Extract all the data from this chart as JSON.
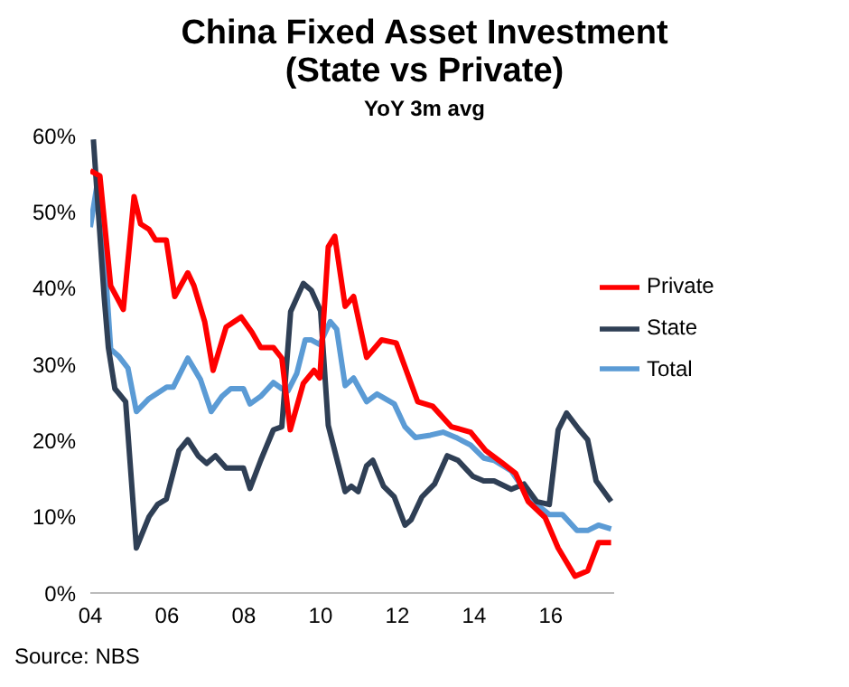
{
  "chart_data": {
    "type": "line",
    "title": "China Fixed Asset Investment\n(State vs Private)",
    "subtitle": "YoY 3m avg",
    "annotations": [
      "Source: NBS"
    ],
    "xlim": [
      2004,
      2017.65
    ],
    "xticks": [
      {
        "value": 2004,
        "label": "04"
      },
      {
        "value": 2006,
        "label": "06"
      },
      {
        "value": 2008,
        "label": "08"
      },
      {
        "value": 2010,
        "label": "10"
      },
      {
        "value": 2012,
        "label": "12"
      },
      {
        "value": 2014,
        "label": "14"
      },
      {
        "value": 2016,
        "label": "16"
      }
    ],
    "ylim": [
      0,
      60
    ],
    "yticks": [
      {
        "value": 0,
        "label": "0%"
      },
      {
        "value": 10,
        "label": "10%"
      },
      {
        "value": 20,
        "label": "20%"
      },
      {
        "value": 30,
        "label": "30%"
      },
      {
        "value": 40,
        "label": "40%"
      },
      {
        "value": 50,
        "label": "50%"
      },
      {
        "value": 60,
        "label": "60%"
      }
    ],
    "grid": false,
    "legend": "top right",
    "marker": "none",
    "line_style": "solid",
    "series": [
      {
        "name": "Total",
        "color": "#5b9bd5",
        "x": [
          2004,
          2004.19,
          2004.36,
          2004.53,
          2004.75,
          2004.98,
          2005.2,
          2005.53,
          2005.99,
          2006.16,
          2006.54,
          2006.87,
          2007.15,
          2007.43,
          2007.66,
          2007.99,
          2008.16,
          2008.44,
          2008.77,
          2008.99,
          2009.15,
          2009.38,
          2009.6,
          2009.76,
          2009.98,
          2010.25,
          2010.42,
          2010.64,
          2010.86,
          2011.2,
          2011.47,
          2011.92,
          2012.2,
          2012.47,
          2012.86,
          2013.19,
          2013.53,
          2013.91,
          2014.25,
          2014.52,
          2014.97,
          2015.3,
          2015.63,
          2015.96,
          2016.3,
          2016.68,
          2016.96,
          2017.24,
          2017.57
        ],
        "values": [
          48,
          54,
          45,
          32,
          31,
          29.5,
          23.8,
          25.5,
          27,
          27,
          30.8,
          28,
          23.8,
          25.8,
          26.8,
          26.8,
          24.8,
          25.8,
          27.6,
          26.8,
          26.5,
          28.8,
          33.2,
          33.2,
          32.6,
          35.6,
          34.6,
          27.2,
          28.2,
          25.1,
          26.1,
          24.8,
          21.8,
          20.4,
          20.7,
          21.1,
          20.4,
          19.4,
          17.7,
          17.4,
          16,
          13.6,
          11.6,
          10.3,
          10.3,
          8.2,
          8.2,
          8.9,
          8.4
        ]
      },
      {
        "name": "State",
        "color": "#2f3f55",
        "x": [
          2004.08,
          2004.36,
          2004.47,
          2004.64,
          2004.92,
          2005.2,
          2005.53,
          2005.75,
          2005.98,
          2006.31,
          2006.54,
          2006.81,
          2007.03,
          2007.26,
          2007.54,
          2007.99,
          2008.16,
          2008.44,
          2008.77,
          2008.99,
          2009.22,
          2009.55,
          2009.76,
          2010,
          2010.2,
          2010.64,
          2010.8,
          2010.98,
          2011.2,
          2011.36,
          2011.64,
          2011.92,
          2012.2,
          2012.36,
          2012.64,
          2012.97,
          2013.3,
          2013.58,
          2013.97,
          2014.25,
          2014.52,
          2014.97,
          2015.3,
          2015.63,
          2015.96,
          2016.19,
          2016.41,
          2016.74,
          2016.96,
          2017.18,
          2017.57
        ],
        "values": [
          59.5,
          38.9,
          32.2,
          26.8,
          25.1,
          5.9,
          10,
          11.6,
          12.3,
          18.7,
          20.1,
          18,
          17,
          18,
          16.4,
          16.4,
          13.7,
          17.4,
          21.4,
          21.8,
          36.9,
          40.6,
          39.7,
          37,
          22,
          13.3,
          14,
          13.3,
          16.7,
          17.4,
          14,
          12.6,
          8.9,
          9.6,
          12.6,
          14.3,
          18,
          17.4,
          15.3,
          14.7,
          14.7,
          13.6,
          14.3,
          12,
          11.6,
          21.4,
          23.6,
          21.4,
          20.1,
          14.7,
          12
        ]
      },
      {
        "name": "Private",
        "color": "#ff0000",
        "x": [
          2004,
          2004.25,
          2004.53,
          2004.86,
          2005.14,
          2005.31,
          2005.53,
          2005.7,
          2005.98,
          2006.2,
          2006.54,
          2006.7,
          2006.98,
          2007.2,
          2007.54,
          2007.93,
          2008.21,
          2008.44,
          2008.77,
          2008.99,
          2009.21,
          2009.55,
          2009.83,
          2009.98,
          2010.2,
          2010.37,
          2010.64,
          2010.86,
          2011.2,
          2011.59,
          2011.97,
          2012.53,
          2012.92,
          2013.41,
          2013.91,
          2014.3,
          2014.75,
          2015.08,
          2015.41,
          2015.85,
          2016.19,
          2016.63,
          2016.96,
          2017.24,
          2017.57
        ],
        "values": [
          55.4,
          54.7,
          40.3,
          37.2,
          52,
          48.4,
          47.7,
          46.3,
          46.3,
          38.9,
          42,
          40.3,
          35.6,
          29.2,
          34.9,
          36.2,
          34.2,
          32.2,
          32.2,
          30.8,
          21.4,
          27.5,
          29.2,
          28.2,
          45.4,
          46.8,
          37.6,
          38.9,
          30.9,
          33.2,
          32.8,
          25.1,
          24.5,
          21.8,
          21.1,
          18.7,
          17,
          15.7,
          12,
          9.9,
          5.9,
          2.2,
          2.9,
          6.6,
          6.6
        ]
      }
    ]
  }
}
